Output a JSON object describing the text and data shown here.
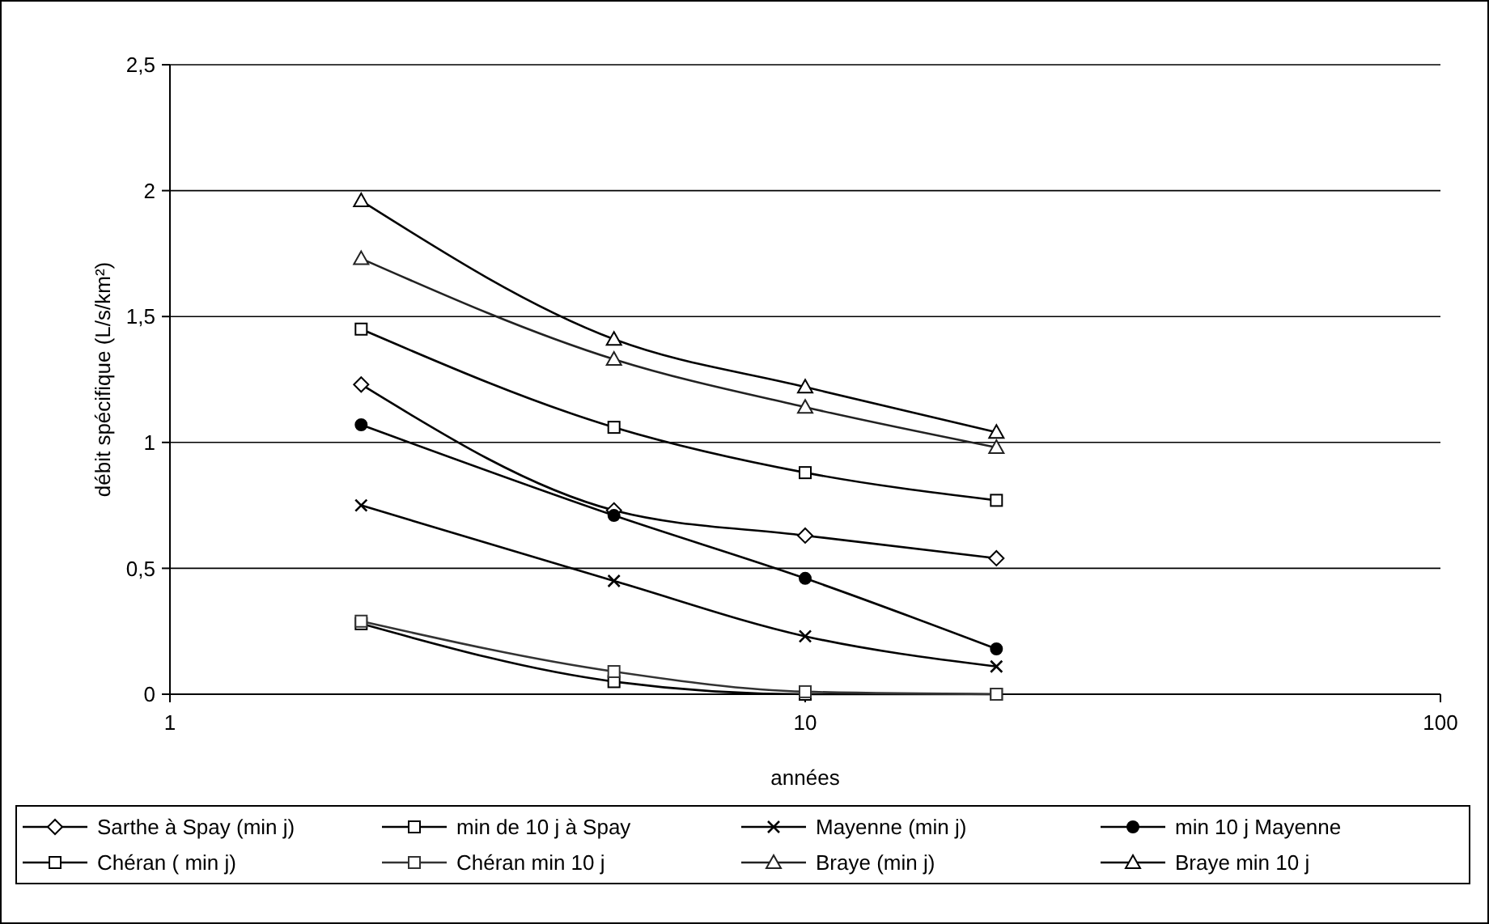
{
  "chart_data": {
    "type": "line",
    "xlabel": "années",
    "ylabel": "débit spécifique (L/s/km²)",
    "log": "x",
    "xlim": [
      1,
      100
    ],
    "xticks": [
      1,
      10,
      100
    ],
    "ylim": [
      0,
      2.5
    ],
    "yticks": [
      0,
      {
        "value": 0.5,
        "label": "0,5"
      },
      1,
      {
        "value": 1.5,
        "label": "1,5"
      },
      2,
      {
        "value": 2.5,
        "label": "2,5"
      }
    ],
    "grid": "y",
    "legend": "bottom",
    "x": [
      2,
      5,
      10,
      20
    ],
    "series": [
      {
        "name": "Sarthe à Spay (min j)",
        "color": "#000000",
        "marker": "diamond",
        "values": [
          1.23,
          0.73,
          0.63,
          0.54
        ]
      },
      {
        "name": "min de 10 j à Spay",
        "color": "#000000",
        "marker": "square",
        "values": [
          1.45,
          1.06,
          0.88,
          0.77
        ]
      },
      {
        "name": "Mayenne (min j)",
        "color": "#000000",
        "marker": "cross",
        "values": [
          0.75,
          0.45,
          0.23,
          0.11
        ]
      },
      {
        "name": "min 10 j  Mayenne",
        "color": "#000000",
        "marker": "circle",
        "values": [
          1.07,
          0.71,
          0.46,
          0.18
        ]
      },
      {
        "name": "Chéran ( min j)",
        "color": "#000000",
        "marker": "square",
        "values": [
          0.28,
          0.05,
          0,
          0
        ]
      },
      {
        "name": "Chéran min 10 j",
        "color": "#333333",
        "marker": "square",
        "values": [
          0.29,
          0.09,
          0.01,
          0
        ]
      },
      {
        "name": "Braye (min j)",
        "color": "#222222",
        "marker": "triangle",
        "values": [
          1.73,
          1.33,
          1.14,
          0.98
        ]
      },
      {
        "name": "Braye min 10 j",
        "color": "#000000",
        "marker": "triangle",
        "values": [
          1.96,
          1.41,
          1.22,
          1.04
        ]
      }
    ]
  }
}
